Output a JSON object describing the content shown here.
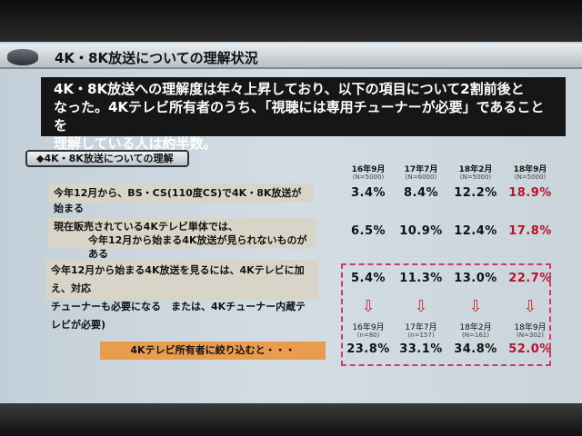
{
  "title": "4K・8K放送についての理解状況",
  "summary": [
    "4K・8K放送への理解度は年々上昇しており、以下の項目について2割前後と",
    "なった。4Kテレビ所有者のうち、「視聴には専用チューナーが必要」であることを",
    "理解している人は約半数。"
  ],
  "section_label": "◆4K・8K放送についての理解",
  "questions": [
    {
      "lines": [
        "今年12月から、BS・CS(110度CS)で4K・8K放送が始まる"
      ],
      "values": [
        "3.4%",
        "8.4%",
        "12.2%",
        "18.9%"
      ]
    },
    {
      "lines": [
        "現在販売されている4Kテレビ単体では、",
        "今年12月から始まる4K放送が見られないものがある"
      ],
      "values": [
        "6.5%",
        "10.9%",
        "12.4%",
        "17.8%"
      ]
    },
    {
      "lines": [
        "今年12月から始まる4K放送を見るには、4Kテレビに加え、対応",
        "チューナーも必要になる　または、4Kチューナー内蔵テレビが必要)"
      ],
      "values": [
        "5.4%",
        "11.3%",
        "13.0%",
        "22.7%"
      ]
    }
  ],
  "columns": [
    {
      "label": "16年9月",
      "n": "(N=5000)"
    },
    {
      "label": "17年7月",
      "n": "(N=6000)"
    },
    {
      "label": "18年2月",
      "n": "(N=5000)"
    },
    {
      "label": "18年9月",
      "n": "(N=5000)"
    }
  ],
  "owners": {
    "label": "4Kテレビ所有者に絞り込むと・・・",
    "arrow_icon": "down-arrow",
    "columns": [
      {
        "label": "16年9月",
        "n": "(n=80)"
      },
      {
        "label": "17年7月",
        "n": "(n=157)"
      },
      {
        "label": "18年2月",
        "n": "(N=161)"
      },
      {
        "label": "18年9月",
        "n": "(N=302)"
      }
    ],
    "values": [
      "23.8%",
      "33.1%",
      "34.8%",
      "52.0%"
    ]
  },
  "colors": {
    "highlight": "#b8122c",
    "dashed_border": "#d03a6a",
    "orange": "#e99b4e"
  }
}
